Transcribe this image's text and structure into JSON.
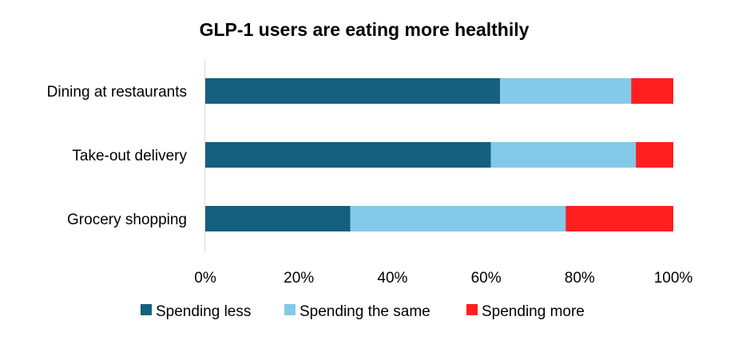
{
  "chart_data": {
    "type": "bar",
    "orientation": "horizontal",
    "stacked": true,
    "title": "GLP-1 users are eating more healthily",
    "categories": [
      "Dining at restaurants",
      "Take-out delivery",
      "Grocery shopping"
    ],
    "series": [
      {
        "name": "Spending less",
        "color": "#155F7F",
        "values": [
          63,
          61,
          31
        ]
      },
      {
        "name": "Spending the same",
        "color": "#84C9E7",
        "values": [
          28,
          31,
          46
        ]
      },
      {
        "name": "Spending more",
        "color": "#FF1F1F",
        "values": [
          9,
          8,
          23
        ]
      }
    ],
    "xlim": [
      0,
      100
    ],
    "xticks": [
      0,
      20,
      40,
      60,
      80,
      100
    ],
    "xtick_labels": [
      "0%",
      "20%",
      "40%",
      "60%",
      "80%",
      "100%"
    ],
    "xlabel": "",
    "ylabel": "",
    "legend_position": "bottom",
    "grid": false
  }
}
